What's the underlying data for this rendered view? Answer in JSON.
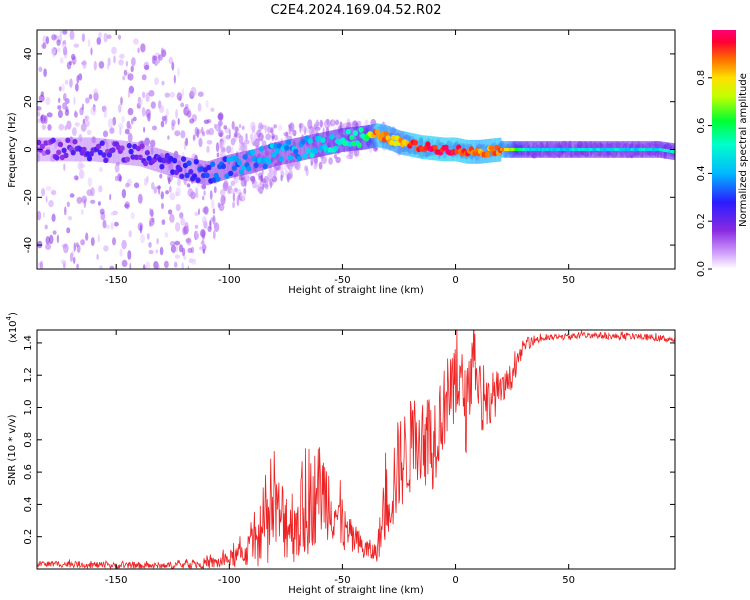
{
  "title": "C2E4.2024.169.04.52.R02",
  "chart_data": [
    {
      "type": "heatmap",
      "xlabel": "Height of straight line (km)",
      "ylabel": "Frequency (Hz)",
      "xlim": [
        -185,
        97
      ],
      "ylim": [
        -50,
        50
      ],
      "xticks": [
        -150,
        -100,
        -50,
        0,
        50
      ],
      "yticks": [
        -40,
        -20,
        0,
        20,
        40
      ],
      "colorbar": {
        "label": "Normalized spectral amplitude",
        "range": [
          0.0,
          1.0
        ],
        "ticks": [
          0.0,
          0.2,
          0.4,
          0.6,
          0.8
        ],
        "colormap": "rainbow (white-violet-blue-cyan-green-yellow-red-magenta)"
      },
      "ridge": {
        "description": "peak frequency of the main signal band",
        "x": [
          -185,
          -160,
          -140,
          -120,
          -110,
          -100,
          -90,
          -80,
          -70,
          -60,
          -50,
          -40,
          -35,
          -30,
          -25,
          -20,
          -15,
          -10,
          -5,
          0,
          5,
          10,
          20,
          30,
          40,
          50,
          60,
          70,
          80,
          90,
          97
        ],
        "y": [
          0,
          0,
          -2,
          -8,
          -10,
          -7,
          -5,
          -2,
          0,
          2,
          4,
          5,
          6,
          5,
          3,
          2,
          1,
          0.5,
          0,
          0,
          -1,
          -1,
          0,
          0,
          0,
          0,
          0,
          0,
          0,
          0,
          -1
        ],
        "amplitude": [
          0.15,
          0.2,
          0.2,
          0.25,
          0.3,
          0.35,
          0.35,
          0.4,
          0.4,
          0.45,
          0.5,
          0.55,
          0.9,
          0.85,
          0.8,
          0.9,
          0.95,
          0.95,
          0.95,
          0.95,
          0.9,
          0.85,
          0.9,
          0.5,
          0.45,
          0.45,
          0.45,
          0.45,
          0.45,
          0.45,
          0.5
        ]
      },
      "noise_spread": {
        "description": "vertical extent (Hz) of scattered low-amplitude noise around the ridge",
        "x": [
          -185,
          -150,
          -120,
          -100,
          -80,
          -60,
          -40,
          -20,
          0,
          20,
          50,
          97
        ],
        "halfwidth": [
          50,
          50,
          45,
          18,
          12,
          10,
          6,
          3,
          2,
          2,
          2,
          2
        ]
      }
    },
    {
      "type": "line",
      "xlabel": "Height of straight line (km)",
      "ylabel": "SNR (10 * v/v)",
      "scale_label": "(x10",
      "scale_exponent": "4",
      "xlim": [
        -185,
        97
      ],
      "ylim": [
        0,
        1.48
      ],
      "xticks": [
        -150,
        -100,
        -50,
        0,
        50
      ],
      "yticks": [
        0.2,
        0.4,
        0.6,
        0.8,
        1.0,
        1.2,
        1.4
      ],
      "color": "#ee2222",
      "series": [
        {
          "x": [
            -185,
            -170,
            -150,
            -130,
            -115,
            -105,
            -100,
            -95,
            -90,
            -85,
            -80,
            -75,
            -70,
            -65,
            -60,
            -55,
            -50,
            -45,
            -40,
            -35,
            -32,
            -30,
            -28,
            -25,
            -22,
            -20,
            -17,
            -15,
            -12,
            -10,
            -8,
            -5,
            -3,
            0,
            3,
            5,
            7,
            8,
            9,
            10,
            12,
            15,
            18,
            20,
            23,
            25,
            28,
            30,
            35,
            40,
            50,
            60,
            70,
            80,
            90,
            97
          ],
          "values": [
            0.03,
            0.03,
            0.02,
            0.02,
            0.03,
            0.04,
            0.06,
            0.09,
            0.13,
            0.22,
            0.33,
            0.3,
            0.28,
            0.38,
            0.5,
            0.42,
            0.25,
            0.18,
            0.12,
            0.1,
            0.3,
            0.45,
            0.5,
            0.65,
            0.7,
            0.75,
            0.85,
            0.8,
            0.82,
            0.78,
            0.9,
            1.0,
            1.05,
            1.1,
            1.15,
            0.95,
            1.2,
            1.48,
            1.2,
            1.15,
            1.0,
            1.05,
            1.1,
            1.08,
            1.15,
            1.2,
            1.3,
            1.38,
            1.42,
            1.43,
            1.44,
            1.45,
            1.44,
            1.44,
            1.43,
            1.42
          ],
          "spread": [
            0.02,
            0.02,
            0.02,
            0.02,
            0.03,
            0.04,
            0.05,
            0.08,
            0.12,
            0.2,
            0.28,
            0.25,
            0.25,
            0.3,
            0.3,
            0.25,
            0.15,
            0.1,
            0.08,
            0.06,
            0.2,
            0.25,
            0.3,
            0.3,
            0.3,
            0.3,
            0.3,
            0.3,
            0.3,
            0.3,
            0.3,
            0.25,
            0.25,
            0.25,
            0.2,
            0.3,
            0.2,
            0.2,
            0.2,
            0.2,
            0.2,
            0.15,
            0.15,
            0.1,
            0.1,
            0.08,
            0.05,
            0.04,
            0.03,
            0.02,
            0.02,
            0.02,
            0.02,
            0.02,
            0.02,
            0.02
          ]
        }
      ]
    }
  ]
}
